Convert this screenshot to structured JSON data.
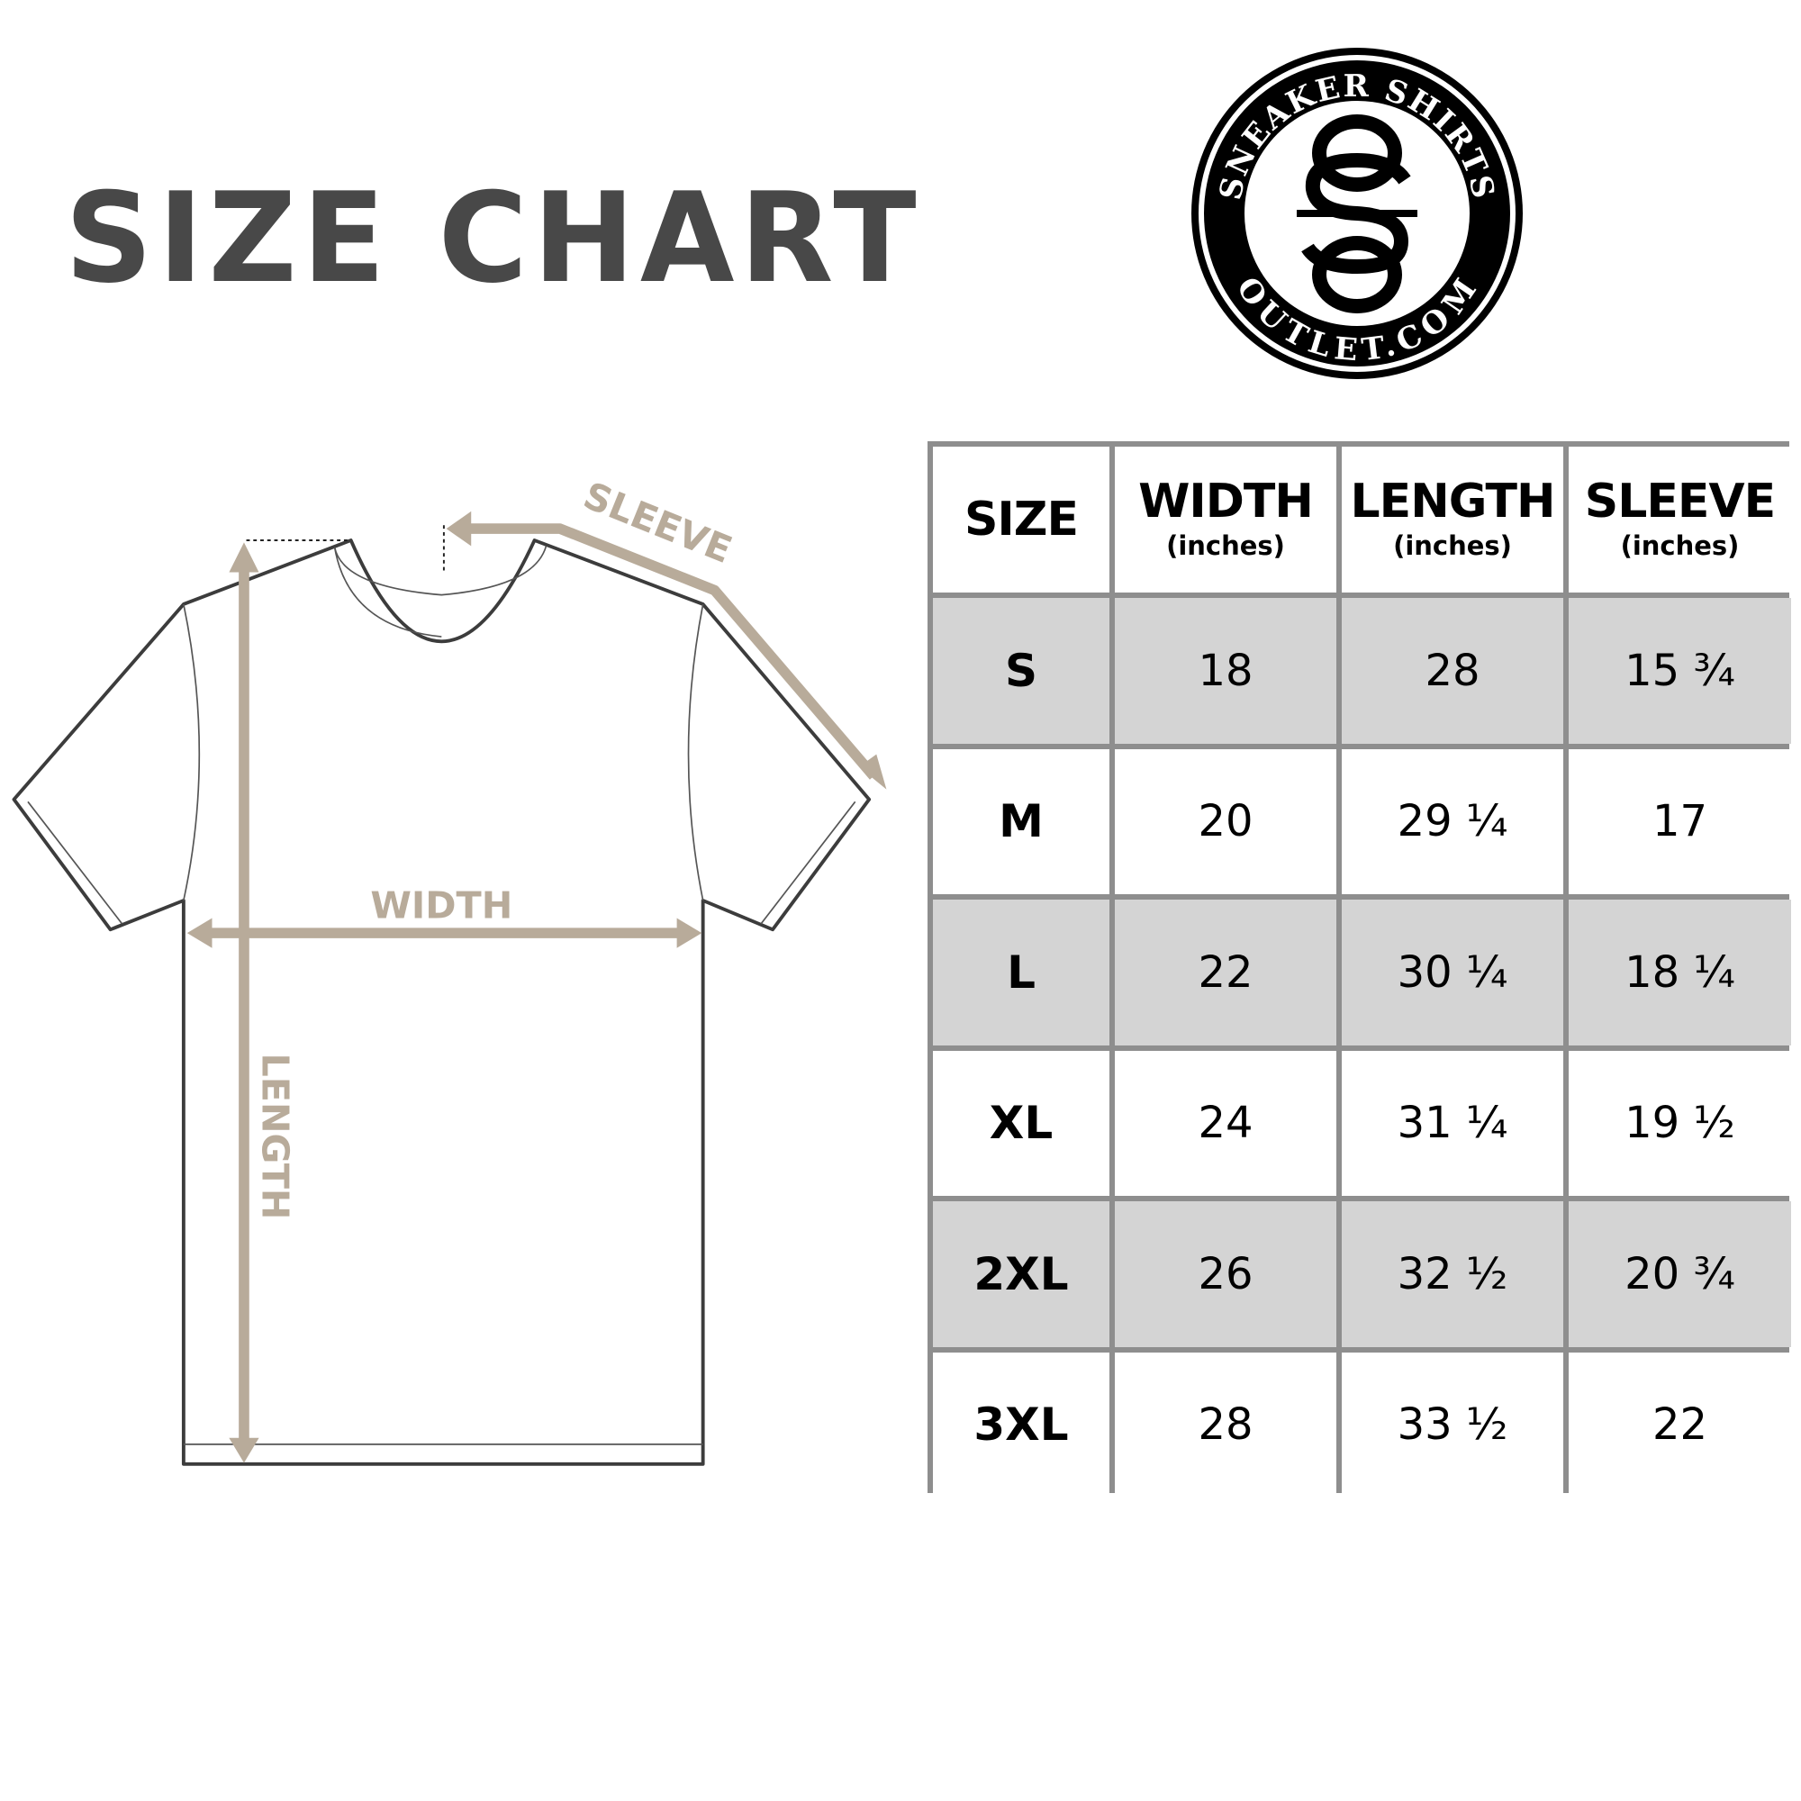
{
  "title": "SIZE CHART",
  "logo": {
    "top_text": "SNEAKER SHIRTS",
    "bottom_text": "OUTLET.COM",
    "monogram": "SO"
  },
  "diagram": {
    "labels": {
      "sleeve": "SLEEVE",
      "width": "WIDTH",
      "length": "LENGTH"
    },
    "arrow_color": "#b8ab9a",
    "outline_color": "#3c3c3c"
  },
  "table": {
    "headers": [
      {
        "label": "SIZE",
        "unit": ""
      },
      {
        "label": "WIDTH",
        "unit": "(inches)"
      },
      {
        "label": "LENGTH",
        "unit": "(inches)"
      },
      {
        "label": "SLEEVE",
        "unit": "(inches)"
      }
    ],
    "rows": [
      [
        "S",
        "18",
        "28",
        "15 ¾"
      ],
      [
        "M",
        "20",
        "29 ¼",
        "17"
      ],
      [
        "L",
        "22",
        "30 ¼",
        "18 ¼"
      ],
      [
        "XL",
        "24",
        "31 ¼",
        "19 ½"
      ],
      [
        "2XL",
        "26",
        "32 ½",
        "20 ¾"
      ],
      [
        "3XL",
        "28",
        "33 ½",
        "22"
      ]
    ],
    "shade_color": "#d4d4d4",
    "border_color": "#8e8e8e"
  }
}
